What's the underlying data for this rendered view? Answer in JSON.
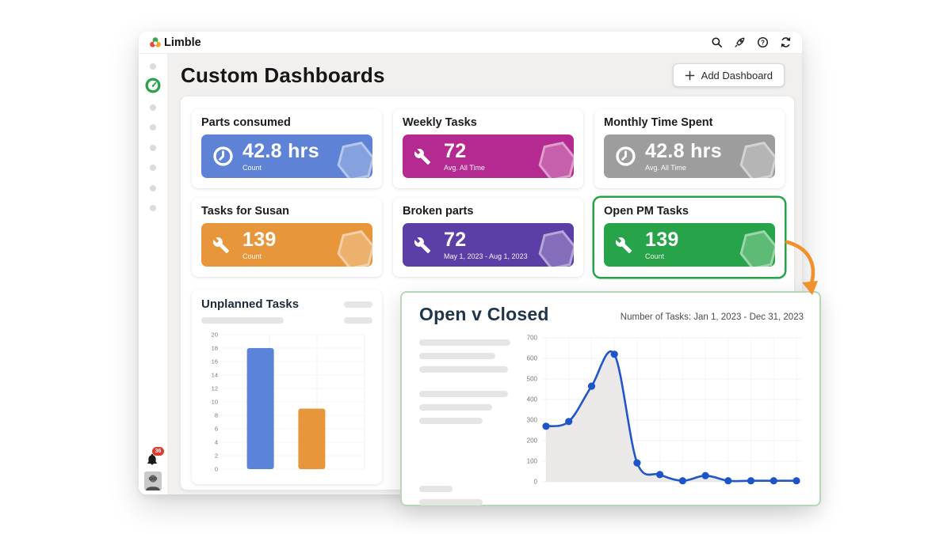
{
  "topbar": {
    "logo_text": "Limble",
    "icons": [
      "search",
      "rocket",
      "help",
      "refresh"
    ]
  },
  "header": {
    "title": "Custom Dashboards",
    "add_button_label": "Add Dashboard"
  },
  "stat_cards": [
    {
      "title": "Parts consumed",
      "value": "42.8 hrs",
      "caption": "Count",
      "icon": "clock",
      "color": "#5e82d6",
      "selected": false
    },
    {
      "title": "Weekly Tasks",
      "value": "72",
      "caption": "Avg. All Time",
      "icon": "wrench",
      "color": "#b42a90",
      "selected": false
    },
    {
      "title": "Monthly Time Spent",
      "value": "42.8 hrs",
      "caption": "Avg. All Time",
      "icon": "clock",
      "color": "#9d9d9d",
      "selected": false
    },
    {
      "title": "Tasks for Susan",
      "value": "139",
      "caption": "Count",
      "icon": "wrench",
      "color": "#e8963c",
      "selected": false
    },
    {
      "title": "Broken parts",
      "value": "72",
      "caption": "May 1, 2023 - Aug 1, 2023",
      "icon": "wrench",
      "color": "#5b3ea6",
      "selected": false
    },
    {
      "title": "Open PM Tasks",
      "value": "139",
      "caption": "Count",
      "icon": "wrench",
      "color": "#27a449",
      "selected": true
    }
  ],
  "chart_data": [
    {
      "type": "bar",
      "title": "Unplanned Tasks",
      "values": [
        18,
        9
      ],
      "bar_colors": [
        "#5b84d8",
        "#e8963c"
      ],
      "ylim": [
        0,
        20
      ],
      "ytick_step": 2,
      "grid": true,
      "x_tick_labels": []
    },
    {
      "type": "line",
      "title": "Open v Closed",
      "subtitle": "Number of Tasks: Jan 1, 2023 - Dec 31, 2023",
      "values": [
        270,
        293,
        465,
        620,
        92,
        35,
        5,
        30,
        5,
        5,
        5,
        5
      ],
      "ylim": [
        0,
        700
      ],
      "ytick_step": 100,
      "line_color": "#2156c8",
      "point_color": "#1d55c9",
      "area_fill": "#e9e7e5",
      "grid": true
    }
  ],
  "sidebar": {
    "notification_count": "36"
  },
  "colors": {
    "selected_card_border": "#27a449",
    "panel_border_green": "#b7d7b7",
    "arrow_orange": "#f0912e",
    "content_bg": "#f1f0ee"
  }
}
